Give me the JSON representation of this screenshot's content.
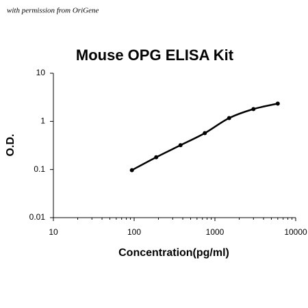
{
  "chart_data": {
    "type": "scatter",
    "annotation": "with permission from OriGene",
    "title": "Mouse OPG ELISA Kit",
    "x_label": "Concentration(pg/ml)",
    "y_label": "O.D.",
    "x": [
      93.75,
      187.5,
      375,
      750,
      1500,
      3000,
      6000
    ],
    "values": [
      0.097,
      0.18,
      0.32,
      0.57,
      1.17,
      1.8,
      2.34
    ],
    "color": "#000000",
    "x_log": true,
    "y_log": true,
    "xlim": [
      10,
      10000
    ],
    "ylim": [
      0.01,
      10
    ],
    "xticks": [
      10,
      100,
      1000,
      10000
    ],
    "yticks": [
      0.01,
      0.1,
      1,
      10
    ]
  }
}
